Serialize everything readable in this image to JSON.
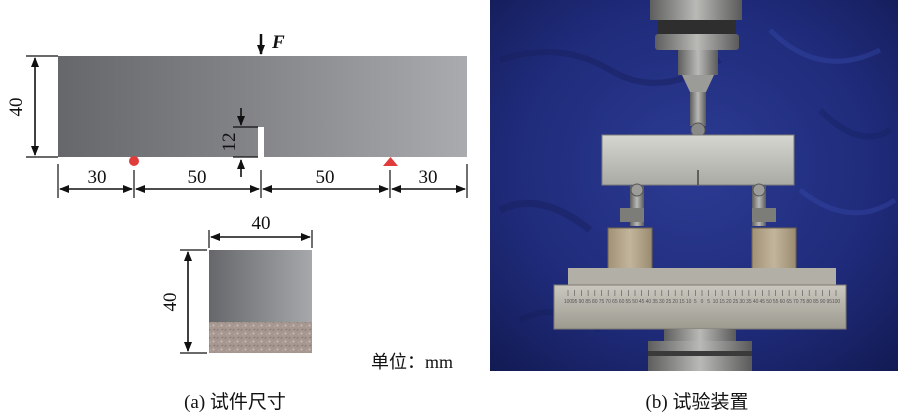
{
  "panel_a": {
    "caption": "(a) 试件尺寸",
    "force_label": "F",
    "dims": {
      "height_main": "40",
      "notch_depth": "12",
      "span_left_overhang": "30",
      "span_left_half": "50",
      "span_right_half": "50",
      "span_right_overhang": "30",
      "section_width": "40",
      "section_height": "40"
    },
    "unit_label": "单位：mm",
    "colors": {
      "beam_dark": "#67686c",
      "beam_light": "#a5a7ab",
      "support_marker": "#e03c3c"
    }
  },
  "panel_b": {
    "caption": "(b) 试验装置",
    "ruler_numbers": [
      "100",
      "95",
      "90",
      "85",
      "80",
      "75",
      "70",
      "65",
      "60",
      "55",
      "50",
      "45",
      "40",
      "35",
      "30",
      "25",
      "20",
      "15",
      "10",
      "5",
      "0",
      "5",
      "10",
      "15",
      "20",
      "25",
      "30",
      "35",
      "40",
      "45",
      "50",
      "55",
      "60",
      "65",
      "70",
      "75",
      "80",
      "85",
      "90",
      "95",
      "100"
    ],
    "colors": {
      "backdrop": "#1f2a78",
      "specimen": "#c8c9c4",
      "fixture_metal": "#b4b1a8"
    }
  }
}
